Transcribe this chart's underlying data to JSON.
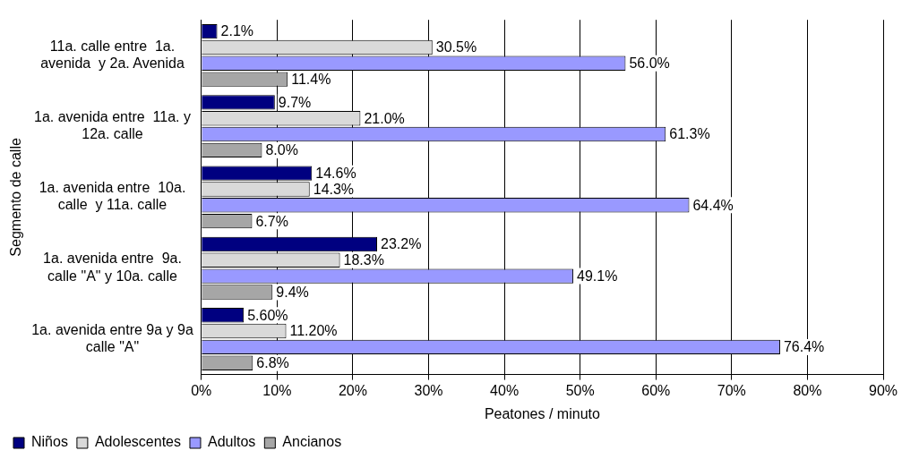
{
  "chart_data": {
    "type": "bar",
    "orientation": "horizontal",
    "xlabel": "Peatones / minuto",
    "ylabel": "Segmento de calle",
    "categories": [
      "11a. calle entre  1a.\navenida  y 2a. Avenida",
      "1a. avenida entre  11a. y\n12a. calle",
      "1a. avenida entre  10a.\ncalle  y 11a. calle",
      "1a. avenida entre  9a.\ncalle \"A\" y 10a. calle",
      "1a. avenida entre 9a y 9a\ncalle \"A\""
    ],
    "series": [
      {
        "name": "Niños",
        "color": "#000080",
        "values": [
          2.1,
          9.7,
          14.6,
          23.2,
          5.6
        ],
        "value_labels": [
          "2.1%",
          "9.7%",
          "14.6%",
          "23.2%",
          "5.60%"
        ]
      },
      {
        "name": "Adolescentes",
        "color": "#d9d9d9",
        "values": [
          30.5,
          21.0,
          14.3,
          18.3,
          11.2
        ],
        "value_labels": [
          "30.5%",
          "21.0%",
          "14.3%",
          "18.3%",
          "11.20%"
        ]
      },
      {
        "name": "Adultos",
        "color": "#9999ff",
        "values": [
          56.0,
          61.3,
          64.4,
          49.1,
          76.4
        ],
        "value_labels": [
          "56.0%",
          "61.3%",
          "64.4%",
          "49.1%",
          "76.4%"
        ]
      },
      {
        "name": "Ancianos",
        "color": "#a6a6a6",
        "values": [
          11.4,
          8.0,
          6.7,
          9.4,
          6.8
        ],
        "value_labels": [
          "11.4%",
          "8.0%",
          "6.7%",
          "9.4%",
          "6.8%"
        ]
      }
    ],
    "xlim": [
      0,
      90
    ],
    "xticks": [
      {
        "value": 0,
        "label": "0%"
      },
      {
        "value": 10,
        "label": "10%"
      },
      {
        "value": 20,
        "label": "20%"
      },
      {
        "value": 30,
        "label": "30%"
      },
      {
        "value": 40,
        "label": "40%"
      },
      {
        "value": 50,
        "label": "50%"
      },
      {
        "value": 60,
        "label": "60%"
      },
      {
        "value": 70,
        "label": "70%"
      },
      {
        "value": 80,
        "label": "80%"
      },
      {
        "value": 90,
        "label": "90%"
      }
    ],
    "grid": "x",
    "legend": "bottom left"
  }
}
